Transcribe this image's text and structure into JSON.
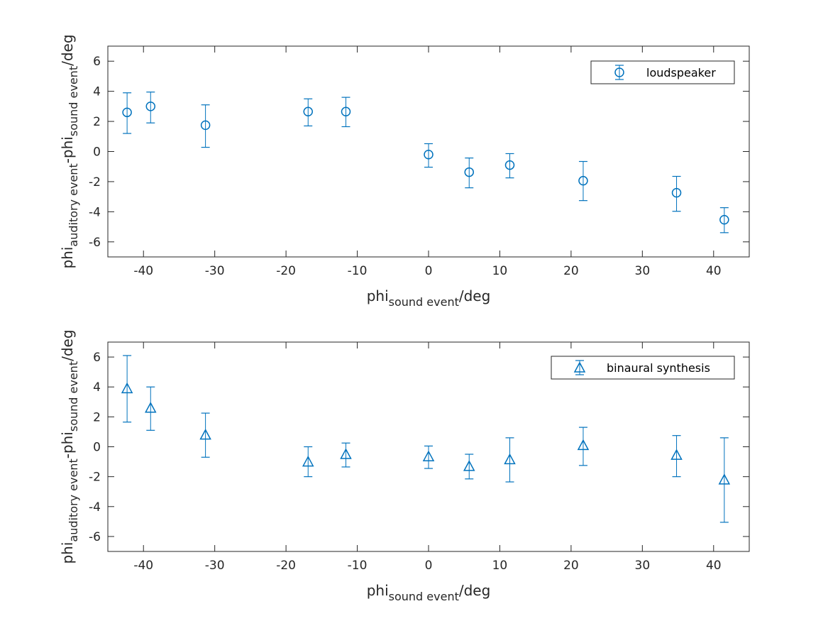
{
  "chart_data": [
    {
      "type": "scatter",
      "error_bars": true,
      "marker": "circle",
      "color": "#0072BD",
      "xlim": [
        -45,
        45
      ],
      "ylim": [
        -7,
        7
      ],
      "xticks": [
        -40,
        -30,
        -20,
        -10,
        0,
        10,
        20,
        30,
        40
      ],
      "yticks": [
        -6,
        -4,
        -2,
        0,
        2,
        4,
        6
      ],
      "grid": false,
      "legend_position": "top-right",
      "xlabel": {
        "main": "phi",
        "sub": "sound event",
        "suffix": "/deg"
      },
      "ylabel": {
        "main": "phi",
        "sub": "auditory event",
        "mid": "-phi",
        "sub2": "sound event",
        "suffix": "/deg"
      },
      "series": [
        {
          "name": "loudspeaker",
          "x": [
            -42.3,
            -39.0,
            -31.3,
            -16.9,
            -11.6,
            0,
            5.7,
            11.4,
            21.7,
            34.8,
            41.5
          ],
          "y": [
            2.6,
            3.0,
            1.75,
            2.65,
            2.65,
            -0.2,
            -1.37,
            -0.9,
            -1.94,
            -2.74,
            -4.53
          ],
          "upper": [
            3.9,
            3.95,
            3.1,
            3.5,
            3.6,
            0.52,
            -0.43,
            -0.14,
            -0.66,
            -1.65,
            -3.73
          ],
          "lower": [
            1.2,
            1.9,
            0.28,
            1.7,
            1.65,
            -1.04,
            -2.41,
            -1.75,
            -3.26,
            -3.97,
            -5.39
          ]
        }
      ]
    },
    {
      "type": "scatter",
      "error_bars": true,
      "marker": "triangle",
      "color": "#0072BD",
      "xlim": [
        -45,
        45
      ],
      "ylim": [
        -7,
        7
      ],
      "xticks": [
        -40,
        -30,
        -20,
        -10,
        0,
        10,
        20,
        30,
        40
      ],
      "yticks": [
        -6,
        -4,
        -2,
        0,
        2,
        4,
        6
      ],
      "grid": false,
      "legend_position": "top-right",
      "xlabel": {
        "main": "phi",
        "sub": "sound event",
        "suffix": "/deg"
      },
      "ylabel": {
        "main": "phi",
        "sub": "auditory event",
        "mid": "-phi",
        "sub2": "sound event",
        "suffix": "/deg"
      },
      "series": [
        {
          "name": "binaural synthesis",
          "x": [
            -42.3,
            -39.0,
            -31.3,
            -16.9,
            -11.6,
            0,
            5.7,
            11.4,
            21.7,
            34.8,
            41.5
          ],
          "y": [
            3.9,
            2.6,
            0.8,
            -1.0,
            -0.5,
            -0.65,
            -1.3,
            -0.85,
            0.1,
            -0.55,
            -2.2
          ],
          "upper": [
            6.1,
            4.0,
            2.25,
            0.0,
            0.25,
            0.05,
            -0.5,
            0.6,
            1.3,
            0.75,
            0.6
          ],
          "lower": [
            1.65,
            1.1,
            -0.7,
            -2.0,
            -1.35,
            -1.45,
            -2.15,
            -2.35,
            -1.25,
            -2.0,
            -5.05
          ]
        }
      ]
    }
  ]
}
